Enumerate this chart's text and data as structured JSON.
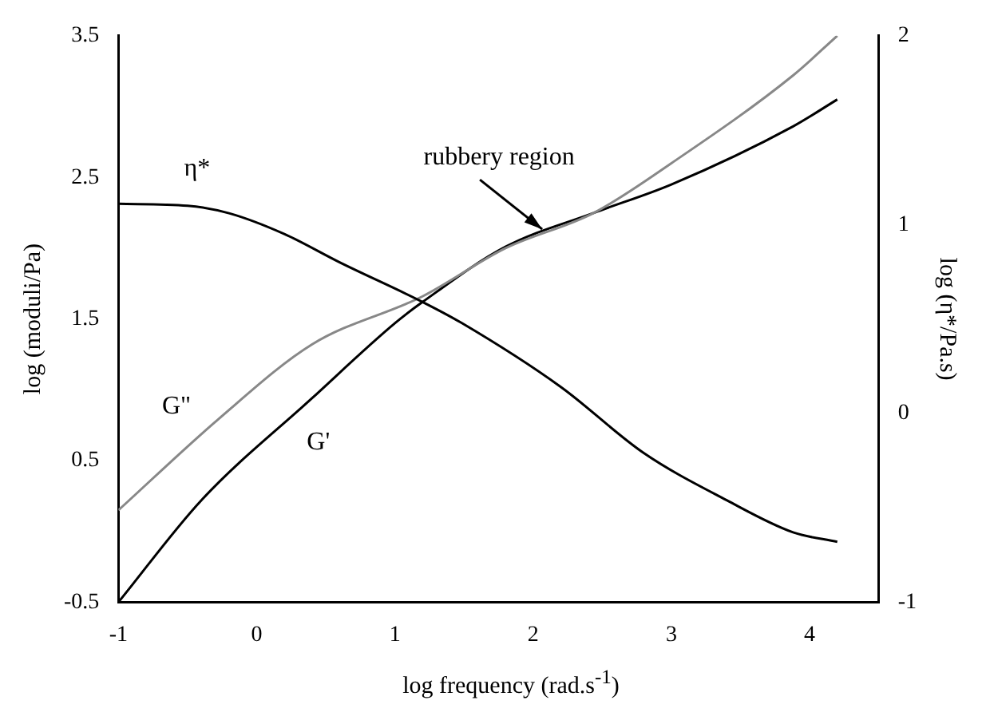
{
  "chart_data": {
    "type": "line",
    "xlabel": "log frequency (rad.s$^{-1}$)",
    "ylabel": "log (moduli/Pa)",
    "y2label": "log (η*/Pa.s)",
    "xlim": [
      -1,
      4.5
    ],
    "xticks": [
      -1,
      0,
      1,
      2,
      3,
      4
    ],
    "ylim": [
      -0.5,
      3.5
    ],
    "yticks": [
      -0.5,
      0.5,
      1.5,
      2.5,
      3.5
    ],
    "y2lim": [
      -1,
      2
    ],
    "y2ticks": [
      -1,
      0,
      1,
      2
    ],
    "grid": false,
    "legend": false,
    "marker": "none",
    "annotations": [
      {
        "text": "rubbery region",
        "x": 2.1,
        "y": 2.1
      }
    ],
    "series": [
      {
        "name": "η*",
        "color": "#000000",
        "axis": "y2",
        "x": [
          -1,
          -0.5,
          -0.2,
          0.2,
          0.6,
          1.2,
          1.48,
          2.2,
          2.8,
          3.4,
          3.88,
          4.2
        ],
        "values": [
          1.11,
          1.1,
          1.06,
          0.95,
          0.8,
          0.59,
          0.48,
          0.14,
          -0.21,
          -0.46,
          -0.63,
          -0.68
        ]
      },
      {
        "name": "G\"",
        "color": "#888888",
        "x": [
          -1,
          -0.28,
          0.4,
          1.2,
          1.8,
          2.44,
          3.0,
          3.88,
          4.2
        ],
        "values": [
          0.15,
          0.79,
          1.32,
          1.66,
          2.0,
          2.25,
          2.6,
          3.22,
          3.5
        ]
      },
      {
        "name": "G'",
        "color": "#000000",
        "x": [
          -1,
          -0.4,
          0.4,
          1.0,
          1.2,
          1.8,
          2.44,
          3.0,
          3.88,
          4.2
        ],
        "values": [
          -0.5,
          0.22,
          0.94,
          1.47,
          1.62,
          2.01,
          2.25,
          2.45,
          2.86,
          3.05
        ]
      }
    ]
  }
}
